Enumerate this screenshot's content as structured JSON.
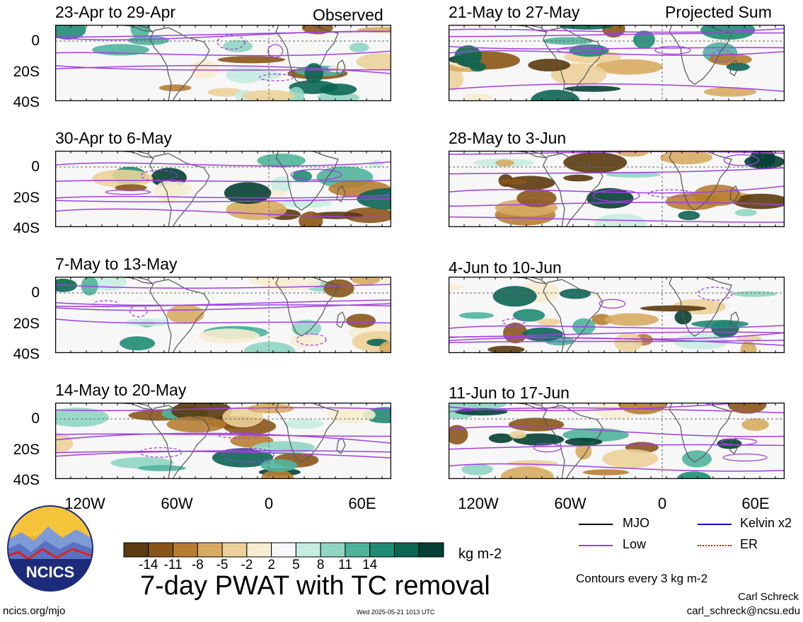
{
  "header": {
    "left_tag": "Observed",
    "right_tag": "Projected Sum"
  },
  "panels": {
    "observed": [
      {
        "title": "23-Apr to 29-Apr"
      },
      {
        "title": "30-Apr to 6-May"
      },
      {
        "title": "7-May to 13-May"
      },
      {
        "title": "14-May to 20-May"
      }
    ],
    "projected": [
      {
        "title": "21-May to 27-May"
      },
      {
        "title": "28-May to 3-Jun"
      },
      {
        "title": "4-Jun to 10-Jun"
      },
      {
        "title": "11-Jun to 17-Jun"
      }
    ]
  },
  "axes": {
    "lat_labels": [
      "0",
      "20S",
      "40S"
    ],
    "lon_labels": [
      "120W",
      "60W",
      "0",
      "60E"
    ]
  },
  "chart_data": {
    "type": "heatmap",
    "title": "7-day PWAT with TC removal",
    "colorbar": {
      "units": "kg m-2",
      "ticks": [
        "-14",
        "-11",
        "-8",
        "-5",
        "-2",
        "2",
        "5",
        "8",
        "11",
        "14"
      ],
      "colors": [
        "#5a3a0e",
        "#8a5518",
        "#b67d33",
        "#d7ab62",
        "#ebd09a",
        "#f6ecd0",
        "#f7f7f7",
        "#c7ece1",
        "#8fd5c1",
        "#4fb39c",
        "#1f8b74",
        "#0b6553",
        "#063f33"
      ]
    },
    "contour_note": "Contours every 3 kg m-2",
    "legend": [
      {
        "label": "MJO",
        "color": "#000000"
      },
      {
        "label": "Kelvin x2",
        "color": "#1414c8"
      },
      {
        "label": "Low",
        "color": "#a040e0"
      },
      {
        "label": "ER",
        "color": "#d01818"
      }
    ]
  },
  "footer": {
    "logo_text": "NCICS",
    "site": "ncics.org/mjo",
    "timestamp": "Wed 2025-05-21 1013 UTC",
    "author": "Carl Schreck",
    "email": "carl_schreck@ncsu.edu"
  }
}
